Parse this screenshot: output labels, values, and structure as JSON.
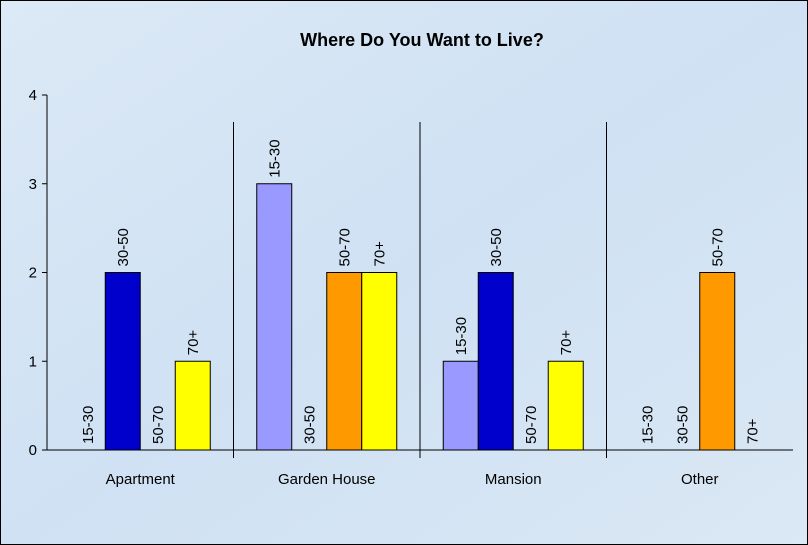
{
  "chart_data": {
    "type": "bar",
    "title": "Where Do You Want to Live?",
    "categories": [
      "Apartment",
      "Garden House",
      "Mansion",
      "Other"
    ],
    "series": [
      {
        "name": "15-30",
        "color": "#9999ff",
        "values": [
          0,
          3,
          1,
          0
        ]
      },
      {
        "name": "30-50",
        "color": "#0000cc",
        "values": [
          2,
          0,
          2,
          0
        ]
      },
      {
        "name": "50-70",
        "color": "#ff9900",
        "values": [
          0,
          2,
          0,
          2
        ]
      },
      {
        "name": "70+",
        "color": "#ffff00",
        "values": [
          1,
          2,
          1,
          0
        ]
      }
    ],
    "ylim": [
      0,
      4
    ],
    "yticks": [
      0,
      1,
      2,
      3,
      4
    ],
    "data_labels": "series_name"
  }
}
